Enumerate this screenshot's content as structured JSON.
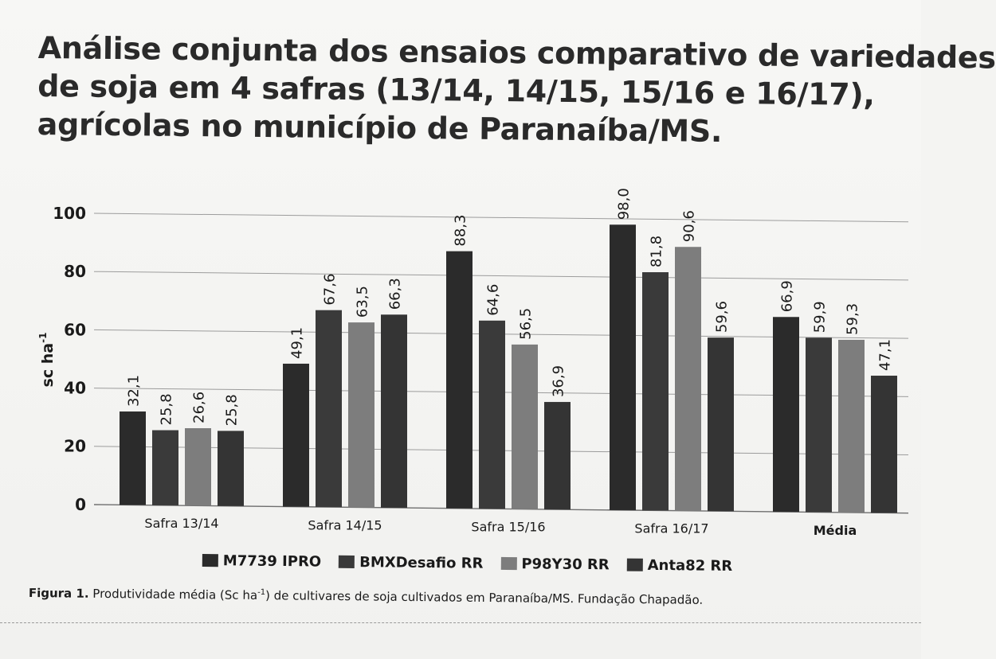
{
  "title_lines": [
    "Análise conjunta dos ensaios comparativo de variedades",
    "de soja em 4 safras (13/14, 14/15, 15/16 e 16/17),",
    "agrícolas no município de Paranaíba/MS."
  ],
  "chart_data": {
    "type": "bar",
    "title": "Análise conjunta dos ensaios comparativo de variedades de soja em 4 safras (13/14, 14/15, 15/16 e 16/17), agrícolas no município de Paranaíba/MS.",
    "ylabel_base": "sc ha",
    "ylabel_sup": "-1",
    "xlabel": "",
    "ylim": [
      0,
      100
    ],
    "yticks": [
      0,
      20,
      40,
      60,
      80,
      100
    ],
    "grid": true,
    "legend_placement": "bottom",
    "categories": [
      "Safra 13/14",
      "Safra 14/15",
      "Safra 15/16",
      "Safra 16/17",
      "Média"
    ],
    "bold_categories": [
      "Média"
    ],
    "series": [
      {
        "name": "M7739 IPRO",
        "values": [
          32.1,
          49.1,
          88.3,
          98.0,
          66.9
        ],
        "labels": [
          "32,1",
          "49,1",
          "88,3",
          "98,0",
          "66,9"
        ],
        "color": "#2b2b2b"
      },
      {
        "name": "BMXDesafio RR",
        "values": [
          25.8,
          67.6,
          64.6,
          81.8,
          59.9
        ],
        "labels": [
          "25,8",
          "67,6",
          "64,6",
          "81,8",
          "59,9"
        ],
        "color": "#3a3a3a"
      },
      {
        "name": "P98Y30 RR",
        "values": [
          26.6,
          63.5,
          56.5,
          90.6,
          59.3
        ],
        "labels": [
          "26,6",
          "63,5",
          "56,5",
          "90,6",
          "59,3"
        ],
        "color": "#7d7d7d"
      },
      {
        "name": "Anta82 RR",
        "values": [
          25.8,
          66.3,
          36.9,
          59.6,
          47.1
        ],
        "labels": [
          "25,8",
          "66,3",
          "36,9",
          "59,6",
          "47,1"
        ],
        "color": "#343434"
      }
    ]
  },
  "caption": {
    "figure_label": "Figura 1.",
    "text_before_sup": " Produtividade média (Sc ha",
    "sup": "-1",
    "text_after_sup": ") de cultivares de soja cultivados em Paranaíba/MS. Fundação Chapadão."
  }
}
